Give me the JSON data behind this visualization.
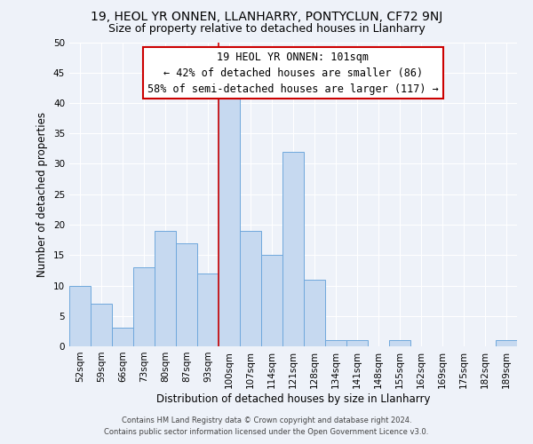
{
  "title": "19, HEOL YR ONNEN, LLANHARRY, PONTYCLUN, CF72 9NJ",
  "subtitle": "Size of property relative to detached houses in Llanharry",
  "xlabel": "Distribution of detached houses by size in Llanharry",
  "ylabel": "Number of detached properties",
  "footer_line1": "Contains HM Land Registry data © Crown copyright and database right 2024.",
  "footer_line2": "Contains public sector information licensed under the Open Government Licence v3.0.",
  "categories": [
    "52sqm",
    "59sqm",
    "66sqm",
    "73sqm",
    "80sqm",
    "87sqm",
    "93sqm",
    "100sqm",
    "107sqm",
    "114sqm",
    "121sqm",
    "128sqm",
    "134sqm",
    "141sqm",
    "148sqm",
    "155sqm",
    "162sqm",
    "169sqm",
    "175sqm",
    "182sqm",
    "189sqm"
  ],
  "values": [
    10,
    7,
    3,
    13,
    19,
    17,
    12,
    41,
    19,
    15,
    32,
    11,
    1,
    1,
    0,
    1,
    0,
    0,
    0,
    0,
    1
  ],
  "bar_color": "#c6d9f0",
  "bar_edge_color": "#6fa8dc",
  "highlight_index": 7,
  "highlight_line_color": "#cc0000",
  "annotation_text_line1": "19 HEOL YR ONNEN: 101sqm",
  "annotation_text_line2": "← 42% of detached houses are smaller (86)",
  "annotation_text_line3": "58% of semi-detached houses are larger (117) →",
  "annotation_box_color": "#ffffff",
  "annotation_box_edge_color": "#cc0000",
  "ylim": [
    0,
    50
  ],
  "yticks": [
    0,
    5,
    10,
    15,
    20,
    25,
    30,
    35,
    40,
    45,
    50
  ],
  "background_color": "#eef2f9",
  "grid_color": "#ffffff",
  "title_fontsize": 10,
  "subtitle_fontsize": 9,
  "axis_label_fontsize": 8.5,
  "tick_fontsize": 7.5,
  "annotation_fontsize": 8.5
}
